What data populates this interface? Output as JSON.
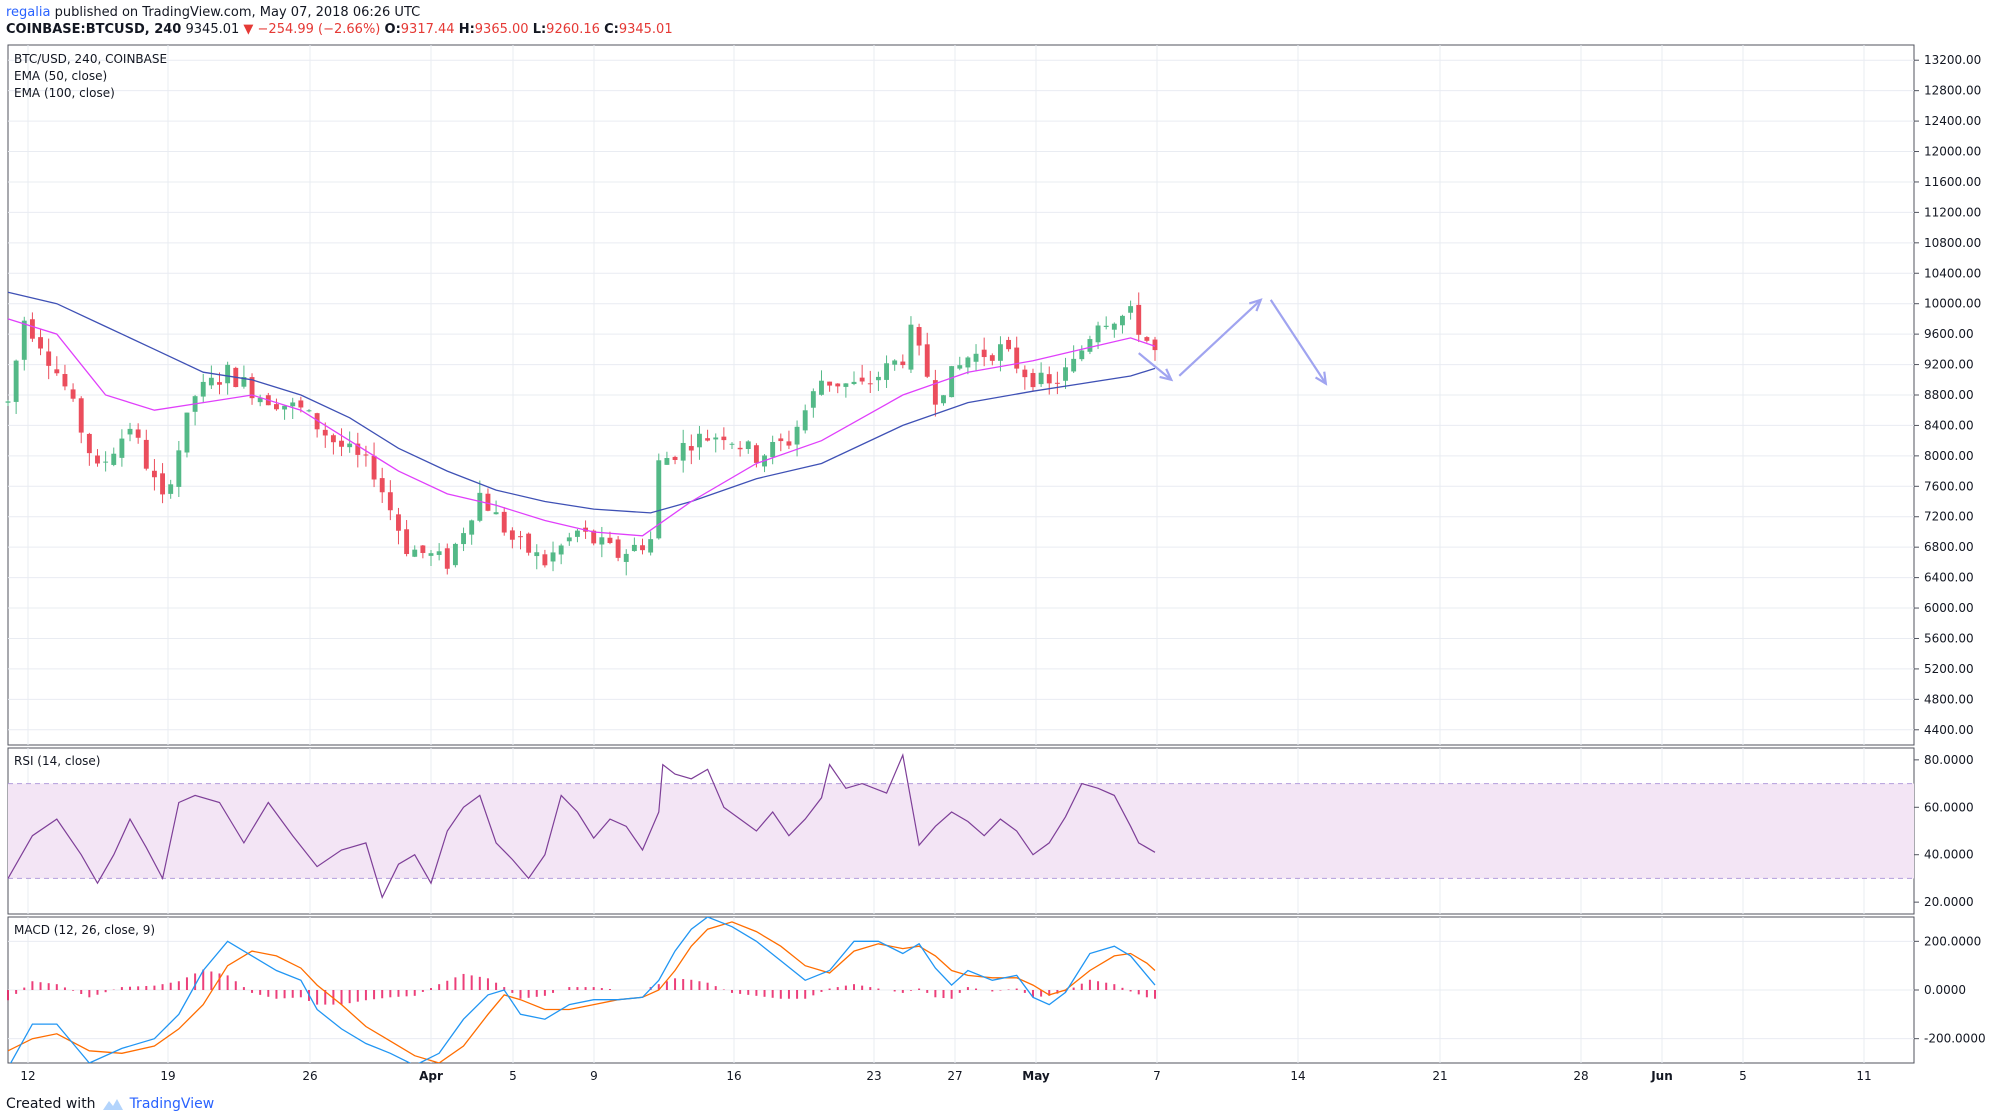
{
  "header": {
    "user": "regalia",
    "published": " published on TradingView.com, May 07, 2018 06:26 UTC",
    "symbol": "COINBASE:BTCUSD, 240",
    "last": "9345.01",
    "change": "▼ −254.99 (−2.66%)",
    "o_label": "O:",
    "o": "9317.44",
    "h_label": "H:",
    "h": "9365.00",
    "l_label": "L:",
    "l": "9260.16",
    "c_label": "C:",
    "c": "9345.01"
  },
  "footer": {
    "created": "Created with",
    "brand": "TradingView"
  },
  "colors": {
    "up": "#53b987",
    "down": "#eb4d5c",
    "ema50": "#e040fb",
    "ema100": "#3f51b5",
    "rsi": "#7e3f98",
    "rsi_band": "#f3e5f5",
    "macd": "#2196f3",
    "signal": "#ff6d00",
    "hist": "#e91e63",
    "arrows": "#a0a4f0",
    "grid": "#e9ecf2"
  },
  "chart_data": [
    {
      "type": "candlestick",
      "title": "BTC/USD, 240, COINBASE",
      "legend": [
        "EMA (50, close)",
        "EMA (100, close)"
      ],
      "ylim": [
        4200,
        13400
      ],
      "y_ticks": [
        "13200.00",
        "12800.00",
        "12400.00",
        "12000.00",
        "11600.00",
        "11200.00",
        "10800.00",
        "10400.00",
        "10000.00",
        "9600.00",
        "9200.00",
        "8800.00",
        "8400.00",
        "8000.00",
        "7600.00",
        "7200.00",
        "6800.00",
        "6400.00",
        "6000.00",
        "5600.00",
        "5200.00",
        "4800.00",
        "4400.00"
      ],
      "x_labels": [
        "12",
        "19",
        "26",
        "Apr",
        "5",
        "9",
        "16",
        "23",
        "27",
        "May",
        "7",
        "14",
        "21",
        "28",
        "Jun",
        "5",
        "11"
      ],
      "price_path": [
        [
          0,
          8700
        ],
        [
          2,
          9800
        ],
        [
          4,
          9500
        ],
        [
          7,
          8900
        ],
        [
          11,
          7800
        ],
        [
          15,
          8400
        ],
        [
          19,
          7400
        ],
        [
          23,
          8800
        ],
        [
          27,
          9100
        ],
        [
          31,
          8800
        ],
        [
          36,
          8600
        ],
        [
          40,
          8200
        ],
        [
          45,
          7800
        ],
        [
          49,
          6800
        ],
        [
          54,
          6600
        ],
        [
          58,
          7500
        ],
        [
          62,
          6900
        ],
        [
          66,
          6600
        ],
        [
          70,
          7000
        ],
        [
          75,
          6700
        ],
        [
          79,
          6900
        ],
        [
          80,
          7900
        ],
        [
          84,
          8200
        ],
        [
          88,
          8300
        ],
        [
          92,
          8000
        ],
        [
          96,
          8200
        ],
        [
          100,
          9000
        ],
        [
          105,
          8900
        ],
        [
          110,
          9300
        ],
        [
          111,
          9600
        ],
        [
          114,
          8800
        ],
        [
          118,
          9300
        ],
        [
          122,
          9400
        ],
        [
          125,
          9100
        ],
        [
          128,
          8900
        ],
        [
          131,
          9200
        ],
        [
          134,
          9800
        ],
        [
          138,
          9850
        ],
        [
          141,
          9350
        ]
      ],
      "ema50": [
        [
          0,
          9800
        ],
        [
          6,
          9600
        ],
        [
          12,
          8800
        ],
        [
          18,
          8600
        ],
        [
          24,
          8700
        ],
        [
          30,
          8800
        ],
        [
          36,
          8600
        ],
        [
          42,
          8200
        ],
        [
          48,
          7800
        ],
        [
          54,
          7500
        ],
        [
          60,
          7350
        ],
        [
          66,
          7150
        ],
        [
          72,
          7000
        ],
        [
          78,
          6950
        ],
        [
          84,
          7400
        ],
        [
          92,
          7900
        ],
        [
          100,
          8200
        ],
        [
          110,
          8800
        ],
        [
          118,
          9100
        ],
        [
          126,
          9250
        ],
        [
          132,
          9400
        ],
        [
          138,
          9550
        ],
        [
          141,
          9440
        ]
      ],
      "ema100": [
        [
          0,
          10150
        ],
        [
          6,
          10000
        ],
        [
          12,
          9700
        ],
        [
          18,
          9400
        ],
        [
          24,
          9100
        ],
        [
          30,
          9000
        ],
        [
          36,
          8800
        ],
        [
          42,
          8500
        ],
        [
          48,
          8100
        ],
        [
          54,
          7800
        ],
        [
          60,
          7550
        ],
        [
          66,
          7400
        ],
        [
          72,
          7300
        ],
        [
          79,
          7250
        ],
        [
          84,
          7400
        ],
        [
          92,
          7700
        ],
        [
          100,
          7900
        ],
        [
          110,
          8400
        ],
        [
          118,
          8700
        ],
        [
          126,
          8850
        ],
        [
          132,
          8950
        ],
        [
          138,
          9050
        ],
        [
          141,
          9150
        ]
      ],
      "projection": [
        [
          143,
          9000
        ],
        [
          154,
          10050
        ],
        [
          162,
          8950
        ]
      ]
    },
    {
      "type": "line",
      "title": "RSI (14, close)",
      "ylim": [
        15,
        85
      ],
      "y_ticks": [
        "80.0000",
        "60.0000",
        "40.0000",
        "20.0000"
      ],
      "band": [
        30,
        70
      ],
      "values": [
        [
          0,
          30
        ],
        [
          3,
          48
        ],
        [
          6,
          55
        ],
        [
          9,
          40
        ],
        [
          11,
          28
        ],
        [
          13,
          40
        ],
        [
          15,
          55
        ],
        [
          17,
          43
        ],
        [
          19,
          30
        ],
        [
          21,
          62
        ],
        [
          23,
          65
        ],
        [
          26,
          62
        ],
        [
          29,
          45
        ],
        [
          32,
          62
        ],
        [
          35,
          48
        ],
        [
          38,
          35
        ],
        [
          41,
          42
        ],
        [
          44,
          45
        ],
        [
          46,
          22
        ],
        [
          48,
          36
        ],
        [
          50,
          40
        ],
        [
          52,
          28
        ],
        [
          54,
          50
        ],
        [
          56,
          60
        ],
        [
          58,
          65
        ],
        [
          60,
          45
        ],
        [
          62,
          38
        ],
        [
          64,
          30
        ],
        [
          66,
          40
        ],
        [
          68,
          65
        ],
        [
          70,
          58
        ],
        [
          72,
          47
        ],
        [
          74,
          55
        ],
        [
          76,
          52
        ],
        [
          78,
          42
        ],
        [
          80,
          58
        ],
        [
          80.5,
          78
        ],
        [
          82,
          74
        ],
        [
          84,
          72
        ],
        [
          86,
          76
        ],
        [
          88,
          60
        ],
        [
          90,
          55
        ],
        [
          92,
          50
        ],
        [
          94,
          58
        ],
        [
          96,
          48
        ],
        [
          98,
          55
        ],
        [
          100,
          64
        ],
        [
          101,
          78
        ],
        [
          103,
          68
        ],
        [
          105,
          70
        ],
        [
          108,
          66
        ],
        [
          110,
          82
        ],
        [
          112,
          44
        ],
        [
          114,
          52
        ],
        [
          116,
          58
        ],
        [
          118,
          54
        ],
        [
          120,
          48
        ],
        [
          122,
          55
        ],
        [
          124,
          50
        ],
        [
          126,
          40
        ],
        [
          128,
          45
        ],
        [
          130,
          56
        ],
        [
          132,
          70
        ],
        [
          134,
          68
        ],
        [
          136,
          65
        ],
        [
          138,
          52
        ],
        [
          139,
          45
        ],
        [
          141,
          41
        ]
      ]
    },
    {
      "type": "line+histogram",
      "title": "MACD (12, 26, close, 9)",
      "ylim": [
        -300,
        300
      ],
      "y_ticks": [
        "200.0000",
        "0.0000",
        "-200.0000"
      ],
      "macd": [
        [
          0,
          -320
        ],
        [
          3,
          -140
        ],
        [
          6,
          -140
        ],
        [
          10,
          -300
        ],
        [
          14,
          -240
        ],
        [
          18,
          -200
        ],
        [
          21,
          -100
        ],
        [
          24,
          80
        ],
        [
          27,
          200
        ],
        [
          30,
          140
        ],
        [
          33,
          80
        ],
        [
          36,
          40
        ],
        [
          38,
          -80
        ],
        [
          41,
          -160
        ],
        [
          44,
          -220
        ],
        [
          47,
          -260
        ],
        [
          50,
          -310
        ],
        [
          53,
          -260
        ],
        [
          56,
          -120
        ],
        [
          59,
          -20
        ],
        [
          61,
          0
        ],
        [
          63,
          -100
        ],
        [
          66,
          -120
        ],
        [
          69,
          -60
        ],
        [
          72,
          -40
        ],
        [
          75,
          -40
        ],
        [
          78,
          -30
        ],
        [
          80,
          40
        ],
        [
          82,
          160
        ],
        [
          84,
          250
        ],
        [
          86,
          300
        ],
        [
          89,
          260
        ],
        [
          92,
          200
        ],
        [
          95,
          120
        ],
        [
          98,
          40
        ],
        [
          101,
          80
        ],
        [
          104,
          200
        ],
        [
          107,
          200
        ],
        [
          110,
          150
        ],
        [
          112,
          190
        ],
        [
          114,
          90
        ],
        [
          116,
          20
        ],
        [
          118,
          80
        ],
        [
          121,
          40
        ],
        [
          124,
          60
        ],
        [
          126,
          -30
        ],
        [
          128,
          -60
        ],
        [
          130,
          -10
        ],
        [
          133,
          150
        ],
        [
          136,
          180
        ],
        [
          138,
          140
        ],
        [
          140,
          60
        ],
        [
          141,
          20
        ]
      ],
      "signal": [
        [
          0,
          -250
        ],
        [
          3,
          -200
        ],
        [
          6,
          -180
        ],
        [
          10,
          -250
        ],
        [
          14,
          -260
        ],
        [
          18,
          -230
        ],
        [
          21,
          -160
        ],
        [
          24,
          -60
        ],
        [
          27,
          100
        ],
        [
          30,
          160
        ],
        [
          33,
          140
        ],
        [
          36,
          90
        ],
        [
          38,
          20
        ],
        [
          41,
          -60
        ],
        [
          44,
          -150
        ],
        [
          47,
          -210
        ],
        [
          50,
          -270
        ],
        [
          53,
          -300
        ],
        [
          56,
          -230
        ],
        [
          59,
          -100
        ],
        [
          61,
          -20
        ],
        [
          63,
          -40
        ],
        [
          66,
          -80
        ],
        [
          69,
          -80
        ],
        [
          72,
          -60
        ],
        [
          75,
          -40
        ],
        [
          78,
          -30
        ],
        [
          80,
          0
        ],
        [
          82,
          80
        ],
        [
          84,
          180
        ],
        [
          86,
          250
        ],
        [
          89,
          280
        ],
        [
          92,
          240
        ],
        [
          95,
          180
        ],
        [
          98,
          100
        ],
        [
          101,
          70
        ],
        [
          104,
          160
        ],
        [
          107,
          190
        ],
        [
          110,
          170
        ],
        [
          112,
          180
        ],
        [
          114,
          140
        ],
        [
          116,
          80
        ],
        [
          118,
          60
        ],
        [
          121,
          50
        ],
        [
          124,
          50
        ],
        [
          126,
          20
        ],
        [
          128,
          -20
        ],
        [
          130,
          0
        ],
        [
          133,
          80
        ],
        [
          136,
          140
        ],
        [
          138,
          150
        ],
        [
          140,
          110
        ],
        [
          141,
          80
        ]
      ]
    }
  ]
}
